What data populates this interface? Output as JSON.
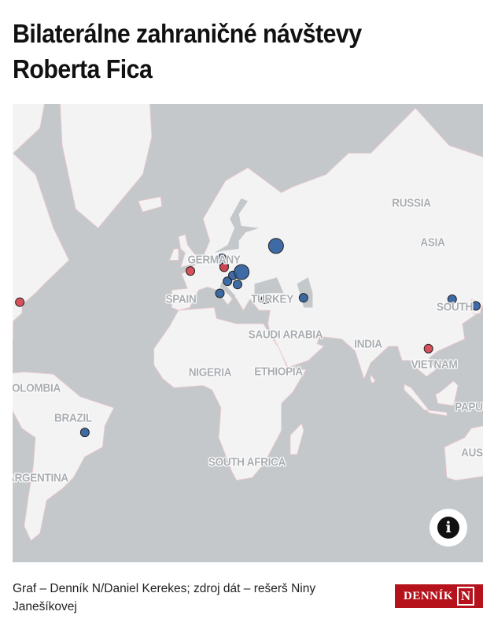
{
  "title": "Bilaterálne zahraničné návštevy Roberta Fica",
  "map": {
    "colors": {
      "ocean": "#c4c8cb",
      "land": "#f3f3f3",
      "border": "#efc9cf",
      "visit_blue": "#2f5f9e",
      "visit_red": "#d6424f"
    },
    "labels": {
      "russia": "RUSSIA",
      "asia": "ASIA",
      "germany": "GERMANY",
      "spain": "SPAIN",
      "turkey": "TURKEY",
      "saudi": "SAUDI ARABIA",
      "india": "INDIA",
      "vietnam": "VIETNAM",
      "south": "SOUTH",
      "nigeria": "NIGERIA",
      "ethiopia": "ETHIOPIA",
      "colombia": "OLOMBIA",
      "brazil": "BRAZIL",
      "papua": "PAPU",
      "aus": "AUS",
      "south_africa": "SOUTH AFRICA",
      "argentina": "ARGENTINA"
    },
    "markers": [
      {
        "lon": -77.0,
        "lat": 38.9,
        "color": "red",
        "size": "small"
      },
      {
        "lon": -0.7,
        "lat": 48.9,
        "color": "red",
        "size": "small"
      },
      {
        "lon": 13.4,
        "lat": 52.5,
        "color": "blue",
        "size": "small"
      },
      {
        "lon": 14.4,
        "lat": 50.6,
        "color": "blue",
        "size": "small"
      },
      {
        "lon": 14.4,
        "lat": 50.0,
        "color": "red",
        "size": "small"
      },
      {
        "lon": 15.9,
        "lat": 45.8,
        "color": "blue",
        "size": "small"
      },
      {
        "lon": 18.3,
        "lat": 47.6,
        "color": "blue",
        "size": "small"
      },
      {
        "lon": 22.2,
        "lat": 48.6,
        "color": "blue",
        "size": "large"
      },
      {
        "lon": 20.4,
        "lat": 44.8,
        "color": "blue",
        "size": "small"
      },
      {
        "lon": 12.5,
        "lat": 41.9,
        "color": "blue",
        "size": "small"
      },
      {
        "lon": 37.6,
        "lat": 55.75,
        "color": "blue",
        "size": "large"
      },
      {
        "lon": 32.9,
        "lat": 39.9,
        "color": "blue",
        "size": "small"
      },
      {
        "lon": 49.9,
        "lat": 40.4,
        "color": "blue",
        "size": "small"
      },
      {
        "lon": 116.4,
        "lat": 39.9,
        "color": "blue",
        "size": "small"
      },
      {
        "lon": 127.0,
        "lat": 37.6,
        "color": "blue",
        "size": "small"
      },
      {
        "lon": 105.8,
        "lat": 21.0,
        "color": "red",
        "size": "small"
      },
      {
        "lon": -47.9,
        "lat": -15.8,
        "color": "blue",
        "size": "small"
      }
    ],
    "info_icon": "info-icon"
  },
  "footer": {
    "credit": "Graf – Denník N/Daniel Kerekes; zdroj dát – rešerš Niny Janešíkovej",
    "logo_text": "DENNÍK N"
  }
}
